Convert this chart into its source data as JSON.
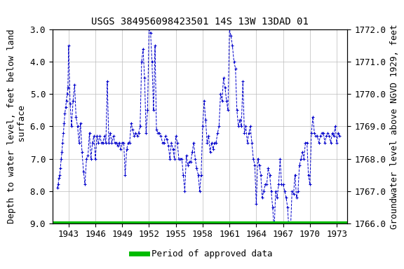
{
  "title": "USGS 384956098423501 14S 13W 13DAD 01",
  "ylabel_left": "Depth to water level, feet below land\n surface",
  "ylabel_right": "Groundwater level above NGVD 1929, feet",
  "ylim_left": [
    9.0,
    3.0
  ],
  "ylim_right": [
    1766.0,
    1772.0
  ],
  "xlim": [
    1941.2,
    1974.2
  ],
  "xticks": [
    1943,
    1946,
    1949,
    1952,
    1955,
    1958,
    1961,
    1964,
    1967,
    1970,
    1973
  ],
  "yticks_left": [
    3.0,
    4.0,
    5.0,
    6.0,
    7.0,
    8.0,
    9.0
  ],
  "yticks_right": [
    1766.0,
    1767.0,
    1768.0,
    1769.0,
    1770.0,
    1771.0,
    1772.0
  ],
  "line_color": "#0000cc",
  "green_bar_color": "#00bb00",
  "background_color": "#ffffff",
  "title_fontsize": 10,
  "axis_label_fontsize": 9,
  "tick_fontsize": 9,
  "legend_fontsize": 9,
  "grid_color": "#bbbbbb",
  "font_family": "monospace",
  "x_data": [
    1941.75,
    1941.83,
    1941.92,
    1942.0,
    1942.08,
    1942.17,
    1942.25,
    1942.33,
    1942.42,
    1942.5,
    1942.58,
    1942.67,
    1942.75,
    1942.83,
    1942.92,
    1943.0,
    1943.17,
    1943.33,
    1943.5,
    1943.67,
    1943.83,
    1944.0,
    1944.17,
    1944.33,
    1944.5,
    1944.67,
    1944.83,
    1945.0,
    1945.17,
    1945.33,
    1945.5,
    1945.67,
    1945.83,
    1946.0,
    1946.17,
    1946.33,
    1946.5,
    1946.67,
    1946.83,
    1947.0,
    1947.17,
    1947.33,
    1947.5,
    1947.67,
    1947.83,
    1948.0,
    1948.17,
    1948.33,
    1948.5,
    1948.67,
    1948.83,
    1949.0,
    1949.17,
    1949.33,
    1949.5,
    1949.67,
    1949.83,
    1950.0,
    1950.17,
    1950.33,
    1950.5,
    1950.67,
    1950.83,
    1951.0,
    1951.17,
    1951.33,
    1951.5,
    1951.67,
    1951.83,
    1952.0,
    1952.17,
    1952.33,
    1952.5,
    1952.67,
    1952.83,
    1953.0,
    1953.17,
    1953.33,
    1953.5,
    1953.67,
    1953.83,
    1954.0,
    1954.17,
    1954.33,
    1954.5,
    1954.67,
    1954.83,
    1955.0,
    1955.17,
    1955.33,
    1955.5,
    1955.67,
    1955.83,
    1956.0,
    1956.17,
    1956.33,
    1956.5,
    1956.67,
    1956.83,
    1957.0,
    1957.17,
    1957.33,
    1957.5,
    1957.67,
    1957.83,
    1958.0,
    1958.17,
    1958.33,
    1958.5,
    1958.67,
    1958.83,
    1959.0,
    1959.17,
    1959.33,
    1959.5,
    1959.67,
    1959.83,
    1960.0,
    1960.17,
    1960.33,
    1960.5,
    1960.67,
    1960.83,
    1961.0,
    1961.17,
    1961.33,
    1961.5,
    1961.67,
    1961.83,
    1962.0,
    1962.17,
    1962.33,
    1962.5,
    1962.67,
    1962.83,
    1963.0,
    1963.17,
    1963.33,
    1963.5,
    1963.67,
    1963.83,
    1964.0,
    1964.17,
    1964.33,
    1964.5,
    1964.67,
    1964.83,
    1965.0,
    1965.17,
    1965.33,
    1965.5,
    1965.67,
    1965.83,
    1966.0,
    1966.17,
    1966.33,
    1966.5,
    1966.67,
    1966.83,
    1967.0,
    1967.17,
    1967.33,
    1967.5,
    1967.67,
    1967.83,
    1968.0,
    1968.17,
    1968.33,
    1968.5,
    1968.67,
    1968.83,
    1969.0,
    1969.17,
    1969.33,
    1969.5,
    1969.67,
    1969.83,
    1970.0,
    1970.17,
    1970.33,
    1970.5,
    1970.67,
    1970.83,
    1971.0,
    1971.17,
    1971.33,
    1971.5,
    1971.67,
    1971.83,
    1972.0,
    1972.17,
    1972.33,
    1972.5,
    1972.67,
    1972.83,
    1973.0,
    1973.17,
    1973.33
  ],
  "y_data": [
    7.9,
    7.8,
    7.6,
    7.5,
    7.3,
    7.0,
    6.8,
    6.5,
    6.2,
    5.9,
    5.6,
    5.4,
    5.2,
    5.0,
    4.8,
    3.5,
    5.3,
    6.0,
    5.2,
    4.7,
    5.7,
    6.0,
    6.5,
    5.9,
    6.8,
    7.4,
    7.8,
    7.0,
    6.9,
    6.2,
    7.0,
    6.5,
    6.3,
    7.0,
    6.3,
    6.5,
    6.3,
    6.5,
    6.5,
    6.3,
    6.5,
    4.6,
    6.5,
    6.2,
    6.5,
    6.3,
    6.5,
    6.5,
    6.6,
    6.5,
    6.7,
    6.5,
    6.5,
    7.5,
    6.7,
    6.5,
    6.5,
    5.9,
    6.1,
    6.3,
    6.2,
    6.3,
    6.2,
    6.0,
    4.0,
    3.6,
    4.5,
    6.2,
    5.5,
    3.0,
    3.1,
    4.0,
    5.5,
    3.5,
    6.1,
    6.2,
    6.2,
    6.3,
    6.5,
    6.5,
    6.3,
    6.4,
    6.6,
    7.0,
    6.5,
    6.7,
    7.0,
    6.3,
    6.5,
    7.0,
    7.0,
    7.0,
    7.5,
    8.0,
    6.9,
    7.2,
    7.1,
    7.1,
    6.8,
    6.5,
    7.0,
    7.3,
    7.5,
    8.0,
    7.5,
    6.0,
    5.2,
    5.8,
    6.5,
    6.3,
    6.8,
    6.5,
    6.7,
    6.5,
    6.5,
    6.2,
    6.0,
    5.0,
    5.2,
    4.5,
    4.8,
    5.2,
    5.5,
    3.0,
    3.2,
    3.5,
    4.0,
    4.2,
    5.5,
    6.0,
    5.8,
    6.0,
    4.6,
    6.2,
    6.0,
    6.5,
    6.2,
    6.0,
    6.5,
    7.0,
    7.2,
    8.4,
    7.0,
    7.2,
    7.5,
    8.2,
    8.0,
    7.8,
    7.8,
    7.3,
    7.5,
    8.0,
    8.5,
    9.2,
    8.0,
    8.2,
    7.8,
    7.0,
    7.8,
    7.8,
    8.0,
    8.2,
    8.5,
    9.3,
    9.2,
    8.0,
    8.1,
    7.5,
    8.2,
    8.0,
    7.2,
    7.0,
    6.8,
    7.0,
    6.5,
    6.5,
    7.5,
    7.8,
    6.2,
    5.7,
    6.2,
    6.3,
    6.3,
    6.5,
    6.3,
    6.2,
    6.2,
    6.5,
    6.3,
    6.2,
    6.3,
    6.5,
    6.2,
    6.3,
    6.0,
    6.5,
    6.2,
    6.3
  ],
  "legend_label": "Period of approved data"
}
